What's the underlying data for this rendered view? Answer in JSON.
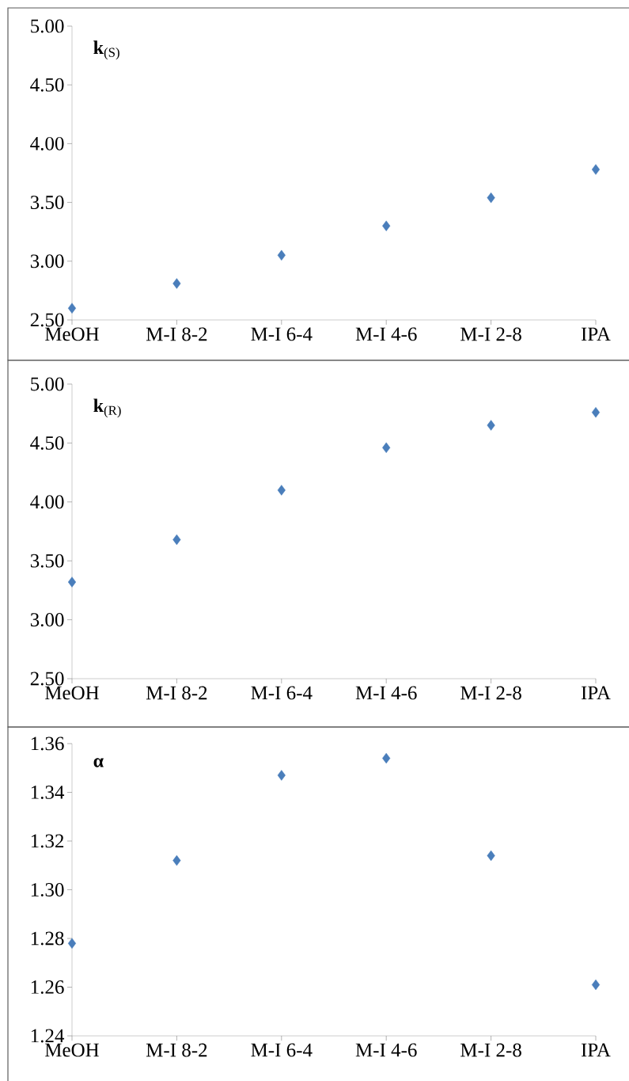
{
  "chart_data": [
    {
      "type": "scatter",
      "categories": [
        "MeOH",
        "M-I 8-2",
        "M-I 6-4",
        "M-I 4-6",
        "M-I 2-8",
        "IPA"
      ],
      "values": [
        2.6,
        2.81,
        3.05,
        3.3,
        3.54,
        3.78
      ],
      "color": "#4a7ebb",
      "marker": "diamond",
      "ylim": [
        2.5,
        5.0
      ],
      "yticks": [
        {
          "value": 2.5,
          "label": "2.50"
        },
        {
          "value": 3.0,
          "label": "3.00"
        },
        {
          "value": 3.5,
          "label": "3.50"
        },
        {
          "value": 4.0,
          "label": "4.00"
        },
        {
          "value": 4.5,
          "label": "4.50"
        },
        {
          "value": 5.0,
          "label": "5.00"
        }
      ],
      "annotations": [
        "**k**$_{(S)}$"
      ]
    },
    {
      "type": "scatter",
      "categories": [
        "MeOH",
        "M-I 8-2",
        "M-I 6-4",
        "M-I 4-6",
        "M-I 2-8",
        "IPA"
      ],
      "values": [
        3.32,
        3.68,
        4.1,
        4.46,
        4.65,
        4.76
      ],
      "color": "#4a7ebb",
      "marker": "diamond",
      "ylim": [
        2.5,
        5.0
      ],
      "yticks": [
        {
          "value": 2.5,
          "label": "2.50"
        },
        {
          "value": 3.0,
          "label": "3.00"
        },
        {
          "value": 3.5,
          "label": "3.50"
        },
        {
          "value": 4.0,
          "label": "4.00"
        },
        {
          "value": 4.5,
          "label": "4.50"
        },
        {
          "value": 5.0,
          "label": "5.00"
        }
      ],
      "annotations": [
        "**k**$_{(R)}$"
      ]
    },
    {
      "type": "scatter",
      "categories": [
        "MeOH",
        "M-I 8-2",
        "M-I 6-4",
        "M-I 4-6",
        "M-I 2-8",
        "IPA"
      ],
      "values": [
        1.278,
        1.312,
        1.347,
        1.354,
        1.314,
        1.261
      ],
      "color": "#4a7ebb",
      "marker": "diamond",
      "ylim": [
        1.24,
        1.36
      ],
      "yticks": [
        {
          "value": 1.24,
          "label": "1.24"
        },
        {
          "value": 1.26,
          "label": "1.26"
        },
        {
          "value": 1.28,
          "label": "1.28"
        },
        {
          "value": 1.3,
          "label": "1.30"
        },
        {
          "value": 1.32,
          "label": "1.32"
        },
        {
          "value": 1.34,
          "label": "1.34"
        },
        {
          "value": 1.36,
          "label": "1.36"
        }
      ],
      "annotations": [
        "**α**"
      ]
    }
  ]
}
